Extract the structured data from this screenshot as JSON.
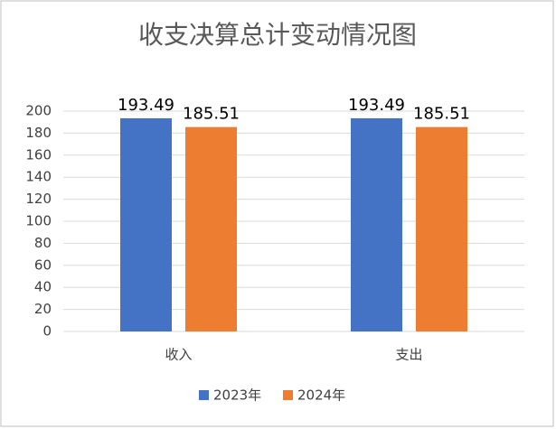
{
  "chart_data": {
    "type": "bar",
    "title": "收支决算总计变动情况图",
    "categories": [
      "收入",
      "支出"
    ],
    "series": [
      {
        "name": "2023年",
        "color": "#4472c4",
        "values": [
          193.49,
          193.49
        ]
      },
      {
        "name": "2024年",
        "color": "#ed7d31",
        "values": [
          185.51,
          185.51
        ]
      }
    ],
    "ylim": [
      0,
      200
    ],
    "yticks": [
      0,
      20,
      40,
      60,
      80,
      100,
      120,
      140,
      160,
      180,
      200
    ],
    "grid": true,
    "legend": "bottom"
  }
}
